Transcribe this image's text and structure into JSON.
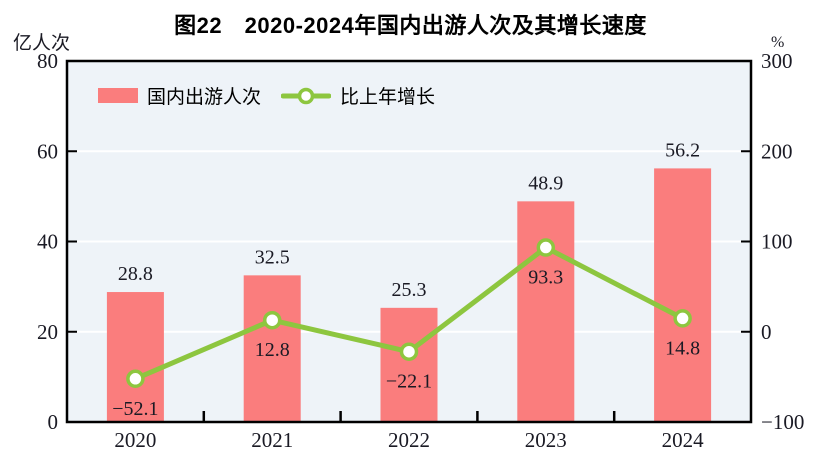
{
  "chart_data": {
    "type": "bar+line combo",
    "title": "图22　2020-2024年国内出游人次及其增长速度",
    "categories": [
      "2020",
      "2021",
      "2022",
      "2023",
      "2024"
    ],
    "series": [
      {
        "name": "国内出游人次",
        "type": "bar",
        "axis": "left",
        "values": [
          28.8,
          32.5,
          25.3,
          48.9,
          56.2
        ],
        "color": "#FA7D7D"
      },
      {
        "name": "比上年增长",
        "type": "line",
        "axis": "right",
        "values": [
          -52.1,
          12.8,
          -22.1,
          93.3,
          14.8
        ],
        "color": "#8DC63F",
        "marker": "circle-white-fill"
      }
    ],
    "left_axis_label": "亿人次",
    "right_axis_label": "%",
    "ylim_left": [
      0,
      80
    ],
    "yticks_left": [
      0,
      20,
      40,
      60,
      80
    ],
    "ylim_right": [
      -100,
      300
    ],
    "yticks_right": [
      -100,
      0,
      100,
      200,
      300
    ],
    "grid": "horizontal-white-lines",
    "legend_position": "top-left-inside",
    "colors": {
      "plot_background": "#EEF3F8",
      "grid_line": "#FFFFFF",
      "frame": "#000000",
      "bar": "#FA7D7D",
      "line": "#8DC63F",
      "text": "#1a1a24"
    }
  }
}
